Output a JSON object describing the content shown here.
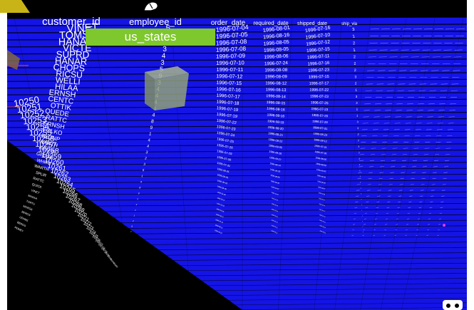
{
  "scene": {
    "background": "#000000",
    "table_color": "#1414e6",
    "tooltip_color": "#7ec72c",
    "cube_color": "#8fa07a",
    "dot_color": "#e33ae8",
    "text_color": "#ffffff"
  },
  "tooltip": {
    "label": "us_states"
  },
  "columns": [
    "customer_id",
    "employee_id",
    "order_date",
    "required_date",
    "shipped_date",
    "ship_via"
  ],
  "rows": [
    {
      "customer_id": "VINET",
      "employee_id": "5",
      "order_date": "1996-07-04",
      "required_date": "1996-08-01",
      "shipped_date": "1996-07-16",
      "ship_via": "3"
    },
    {
      "customer_id": "TOMSP",
      "employee_id": "6",
      "order_date": "1996-07-05",
      "required_date": "1996-08-16",
      "shipped_date": "1996-07-10",
      "ship_via": "1"
    },
    {
      "customer_id": "HANAR",
      "employee_id": "4",
      "order_date": "1996-07-08",
      "required_date": "1996-08-05",
      "shipped_date": "1996-07-12",
      "ship_via": "2"
    },
    {
      "customer_id": "VICTE",
      "employee_id": "3",
      "order_date": "1996-07-08",
      "required_date": "1996-08-05",
      "shipped_date": "1996-07-15",
      "ship_via": "1"
    },
    {
      "customer_id": "SUPRD",
      "employee_id": "4",
      "order_date": "1996-07-09",
      "required_date": "1996-08-06",
      "shipped_date": "1996-07-11",
      "ship_via": "2"
    },
    {
      "customer_id": "HANAR",
      "employee_id": "3",
      "order_date": "1996-07-10",
      "required_date": "1996-07-24",
      "shipped_date": "1996-07-16",
      "ship_via": "2"
    },
    {
      "customer_id": "CHOPS",
      "employee_id": "5",
      "order_date": "1996-07-11",
      "required_date": "1996-08-08",
      "shipped_date": "1996-07-23",
      "ship_via": "2"
    },
    {
      "customer_id": "RICSU",
      "employee_id": "9",
      "order_date": "1996-07-12",
      "required_date": "1996-08-09",
      "shipped_date": "1996-07-15",
      "ship_via": "3"
    },
    {
      "customer_id": "WELLI",
      "employee_id": "3",
      "order_date": "1996-07-15",
      "required_date": "1996-08-12",
      "shipped_date": "1996-07-17",
      "ship_via": "2"
    },
    {
      "customer_id": "HILAA",
      "employee_id": "4",
      "order_date": "1996-07-16",
      "required_date": "1996-08-13",
      "shipped_date": "1996-07-22",
      "ship_via": "1"
    },
    {
      "customer_id": "ERNSH",
      "employee_id": "4",
      "order_date": "1996-07-17",
      "required_date": "1996-08-14",
      "shipped_date": "1996-07-23",
      "ship_via": "3"
    },
    {
      "customer_id": "CENTC",
      "employee_id": "4",
      "order_date": "1996-07-18",
      "required_date": "1996-08-15",
      "shipped_date": "1996-07-25",
      "ship_via": "3"
    },
    {
      "customer_id": "OTTIK",
      "employee_id": "4",
      "order_date": "1996-07-19",
      "required_date": "1996-08-16",
      "shipped_date": "1996-07-23",
      "ship_via": "1"
    },
    {
      "customer_id": "QUEDE",
      "employee_id": "4",
      "order_date": "1996-07-19",
      "required_date": "1996-08-16",
      "shipped_date": "1996-07-26",
      "ship_via": "1"
    },
    {
      "customer_id": "RATTC",
      "employee_id": "8",
      "order_date": "1996-07-22",
      "required_date": "1996-08-19",
      "shipped_date": "1996-07-29",
      "ship_via": "3"
    },
    {
      "customer_id": "ERNSH",
      "employee_id": "9",
      "order_date": "1996-07-23",
      "required_date": "1996-08-20",
      "shipped_date": "1996-07-31",
      "ship_via": "3"
    },
    {
      "customer_id": "FOLKO",
      "employee_id": "1",
      "order_date": "1996-07-24",
      "required_date": "1996-08-21",
      "shipped_date": "1996-08-23",
      "ship_via": "2"
    },
    {
      "customer_id": "BLONP",
      "employee_id": "4",
      "order_date": "1996-07-25",
      "required_date": "1996-08-22",
      "shipped_date": "1996-08-12",
      "ship_via": "2"
    },
    {
      "customer_id": "WARTH",
      "employee_id": "4",
      "order_date": "1996-07-26",
      "required_date": "1996-09-06",
      "shipped_date": "1996-07-31",
      "ship_via": "3"
    },
    {
      "customer_id": "FRANK",
      "employee_id": "3",
      "order_date": "1996-07-29",
      "required_date": "1996-08-26",
      "shipped_date": "1996-07-30",
      "ship_via": "2"
    },
    {
      "customer_id": "GROSR",
      "employee_id": "2",
      "order_date": "1996-07-30",
      "required_date": "1996-08-27",
      "shipped_date": "1996-08-06",
      "ship_via": "3"
    },
    {
      "customer_id": "WHITC",
      "employee_id": "3",
      "order_date": "1996-07-31",
      "required_date": "1996-08-14",
      "shipped_date": "1996-08-09",
      "ship_via": "1"
    },
    {
      "customer_id": "WARTH",
      "employee_id": "5",
      "order_date": "1996-08-01",
      "required_date": "1996-08-29",
      "shipped_date": "1996-08-02",
      "ship_via": "1"
    },
    {
      "customer_id": "SPLIR",
      "employee_id": "1",
      "order_date": "1996-08-01",
      "required_date": "1996-08-29",
      "shipped_date": "1996-08-30",
      "ship_via": "2"
    },
    {
      "customer_id": "RATTC",
      "employee_id": "4",
      "order_date": "1996-08-02",
      "required_date": "1996-08-30",
      "shipped_date": "1996-08-06",
      "ship_via": "2"
    },
    {
      "customer_id": "QUICK",
      "employee_id": "8",
      "order_date": "1996-08-05",
      "required_date": "1996-09-02",
      "shipped_date": "1996-08-07",
      "ship_via": "1"
    },
    {
      "customer_id": "VINET",
      "employee_id": "9",
      "order_date": "1996-08-06",
      "required_date": "1996-09-03",
      "shipped_date": "1996-08-09",
      "ship_via": "2"
    },
    {
      "customer_id": "MAGAA",
      "employee_id": "2",
      "order_date": "1996-08-07",
      "required_date": "1996-09-04",
      "shipped_date": "1996-08-12",
      "ship_via": "2"
    },
    {
      "customer_id": "TORTU",
      "employee_id": "4",
      "order_date": "1996-08-08",
      "required_date": "1996-09-05",
      "shipped_date": "1996-08-16",
      "ship_via": "3"
    },
    {
      "customer_id": "MORGK",
      "employee_id": "1",
      "order_date": "1996-08-09",
      "required_date": "1996-09-06",
      "shipped_date": "1996-08-12",
      "ship_via": "1"
    },
    {
      "customer_id": "BERGS",
      "employee_id": "1",
      "order_date": "1996-08-12",
      "required_date": "1996-09-09",
      "shipped_date": "1996-08-16",
      "ship_via": "3"
    },
    {
      "customer_id": "LEHMS",
      "employee_id": "2",
      "order_date": "1996-08-13",
      "required_date": "1996-09-10",
      "shipped_date": "1996-08-16",
      "ship_via": "2"
    },
    {
      "customer_id": "BERGS",
      "employee_id": "9",
      "order_date": "1996-08-14",
      "required_date": "1996-09-11",
      "shipped_date": "1996-08-19",
      "ship_via": "1"
    },
    {
      "customer_id": "ROMEY",
      "employee_id": "7",
      "order_date": "1996-08-15",
      "required_date": "1996-09-12",
      "shipped_date": "1996-08-22",
      "ship_via": "3"
    }
  ],
  "side_ids": [
    "10250",
    "10251",
    "10252",
    "10253",
    "10254",
    "10255",
    "10256",
    "10257",
    "10258",
    "10259",
    "10260",
    "10261",
    "10262",
    "10263",
    "10264",
    "10265",
    "10266",
    "10267",
    "10268",
    "10269",
    "10270",
    "10271",
    "10272",
    "10273",
    "10274",
    "10275",
    "10276",
    "10277",
    "10278",
    "10279",
    "10280",
    "10281",
    "10282",
    "10283"
  ]
}
